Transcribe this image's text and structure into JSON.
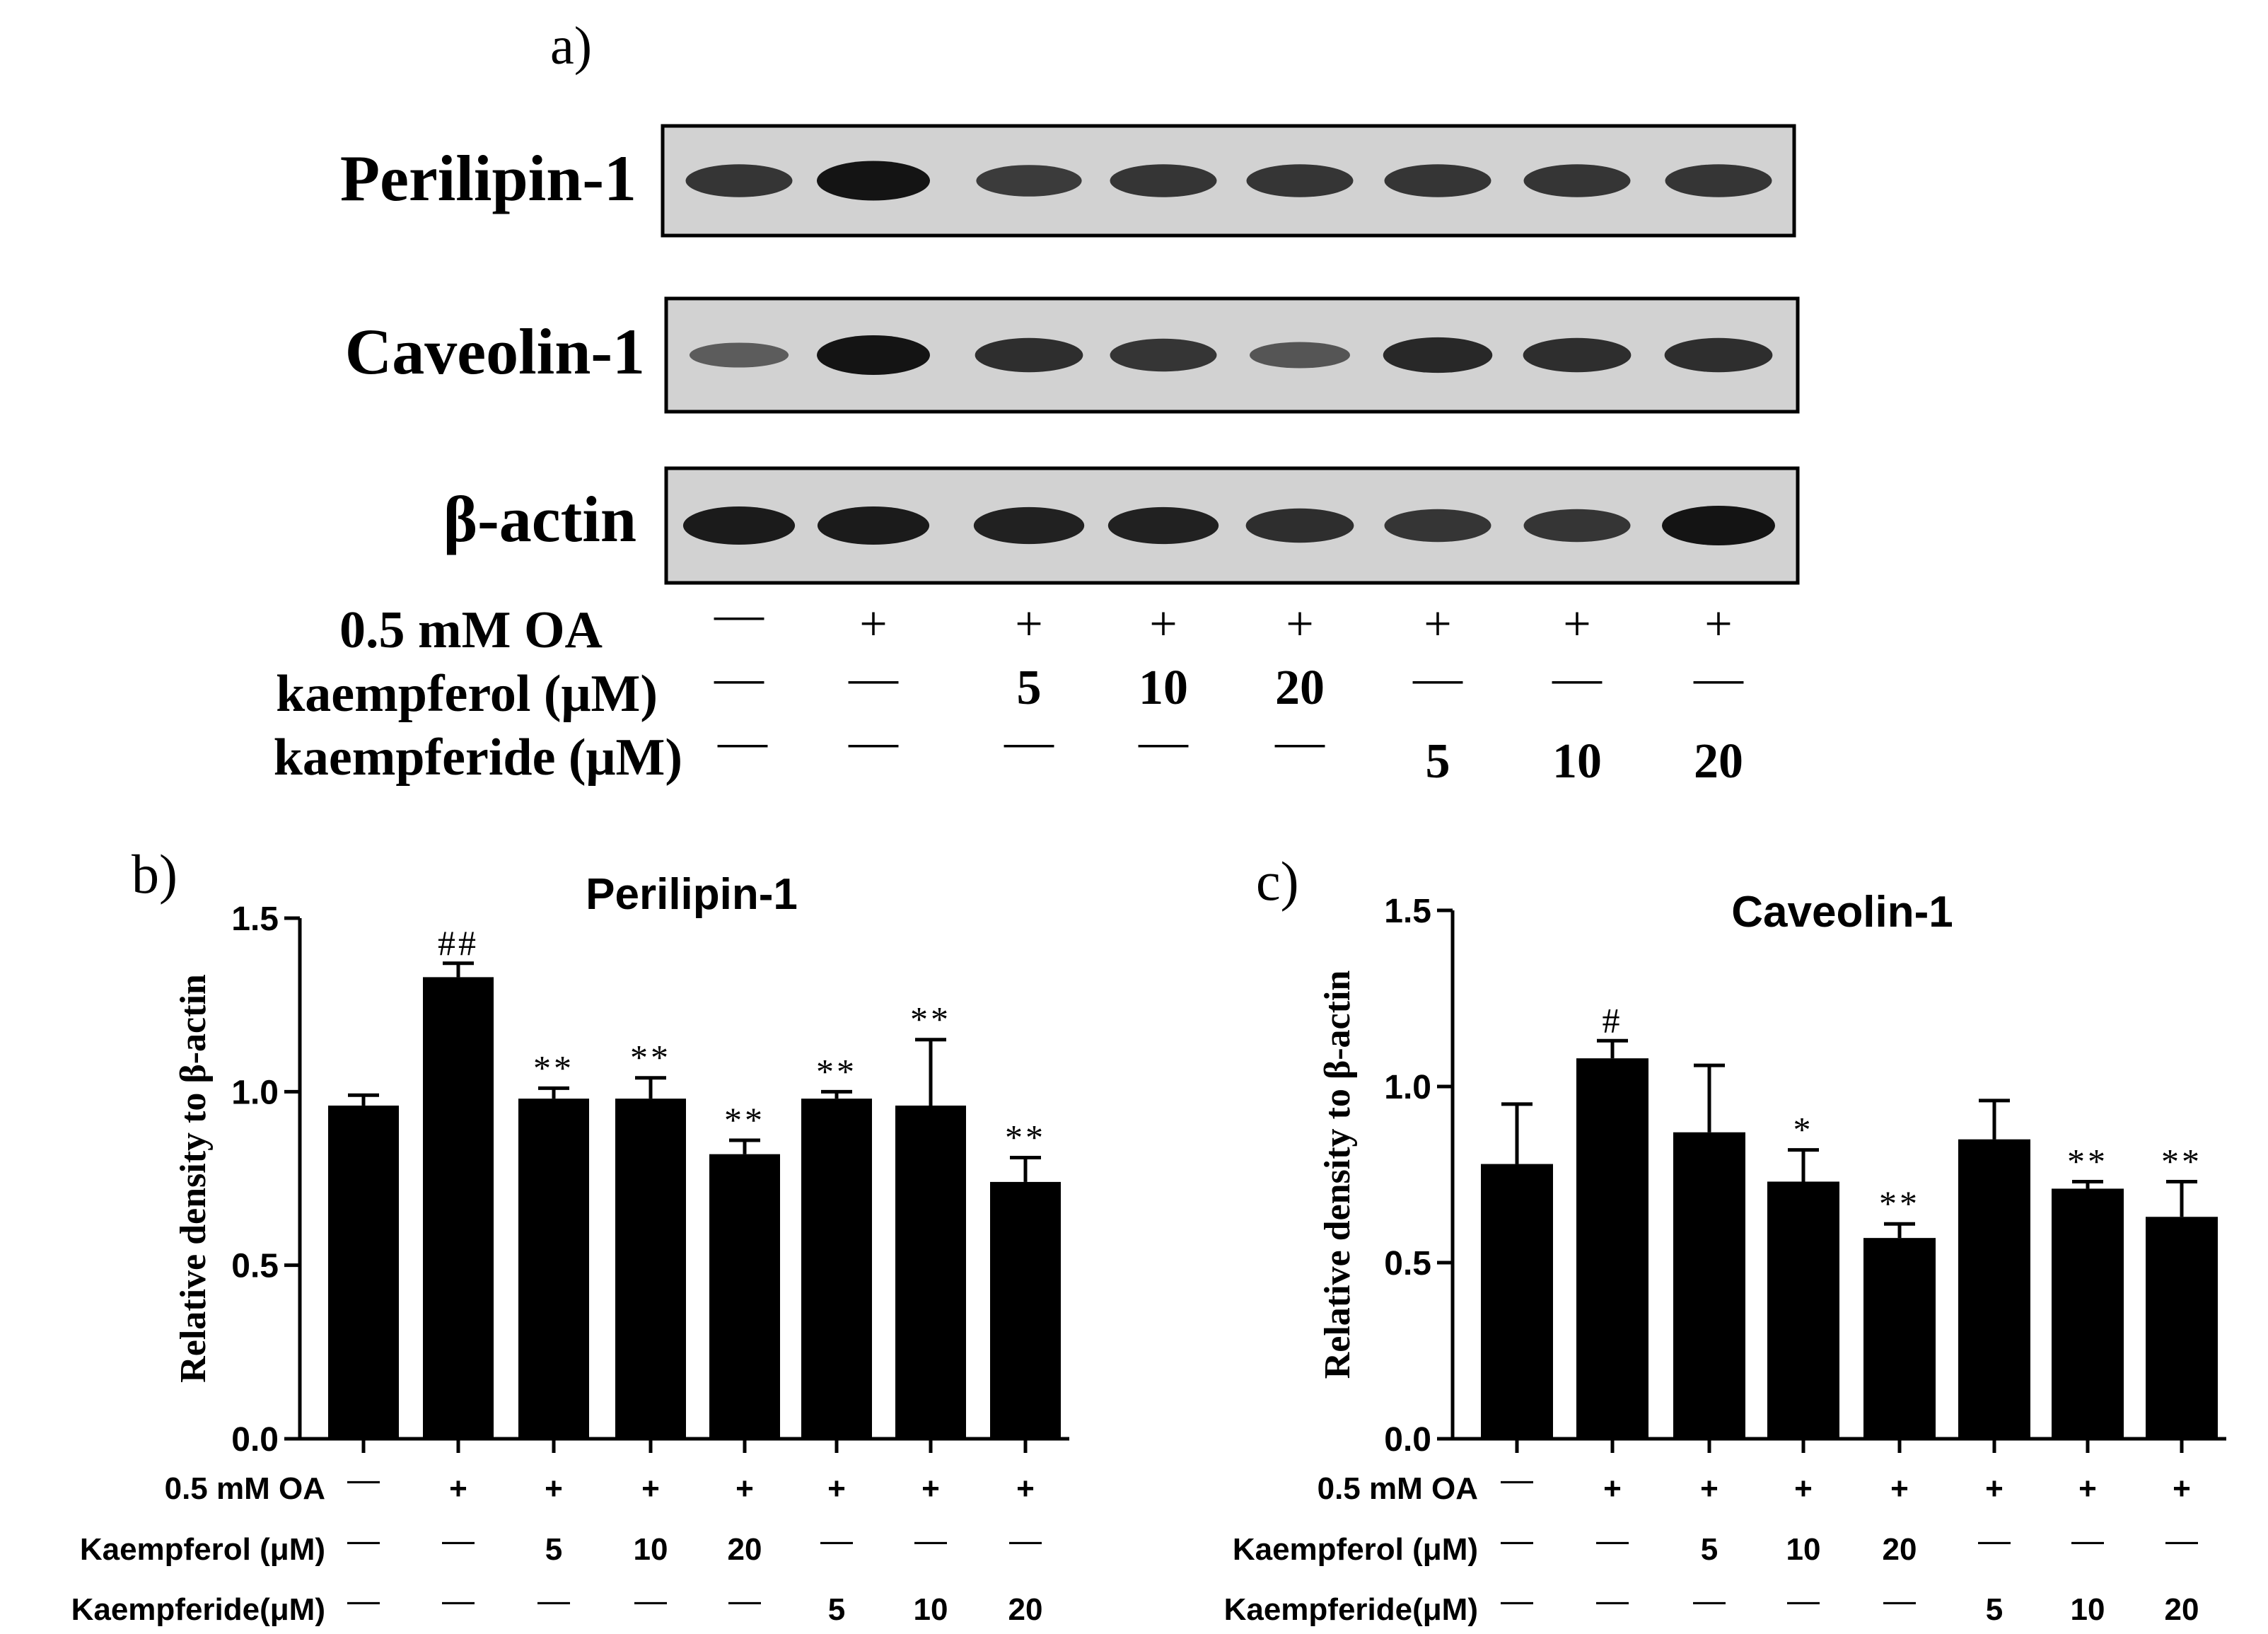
{
  "panel_a": {
    "label": "a)",
    "lanes": 8,
    "blots": [
      {
        "name": "Perilipin-1",
        "band_intensity": [
          0.75,
          1.0,
          0.7,
          0.75,
          0.75,
          0.75,
          0.75,
          0.75
        ]
      },
      {
        "name": "Caveolin-1",
        "band_intensity": [
          0.45,
          1.0,
          0.8,
          0.75,
          0.5,
          0.85,
          0.8,
          0.8
        ]
      },
      {
        "name": "β-actin",
        "band_intensity": [
          0.95,
          0.95,
          0.9,
          0.9,
          0.8,
          0.75,
          0.75,
          1.0
        ]
      }
    ],
    "treatments": [
      {
        "label": "0.5 mM OA",
        "values": [
          "—",
          "+",
          "+",
          "+",
          "+",
          "+",
          "+",
          "+"
        ]
      },
      {
        "label": "kaempferol (μM)",
        "values": [
          "—",
          "—",
          "5",
          "10",
          "20",
          "—",
          "—",
          "—"
        ]
      },
      {
        "label": "kaempferide (μM)",
        "values": [
          "—",
          "—",
          "—",
          "—",
          "—",
          "5",
          "10",
          "20"
        ]
      }
    ]
  },
  "panel_b": {
    "label": "b)"
  },
  "panel_c": {
    "label": "c)"
  },
  "chart_data": [
    {
      "type": "bar",
      "title": "Perilipin-1",
      "ylabel": "Relative density to β-actin",
      "xlabel": "",
      "ylim": [
        0,
        1.5
      ],
      "yticks": [
        "0.0",
        "0.5",
        "1.0",
        "1.5"
      ],
      "values": [
        0.96,
        1.33,
        0.98,
        0.98,
        0.82,
        0.98,
        0.96,
        0.74
      ],
      "errors": [
        0.03,
        0.04,
        0.03,
        0.06,
        0.04,
        0.02,
        0.19,
        0.07
      ],
      "annotations": [
        "",
        "##",
        "**",
        "**",
        "**",
        "**",
        "**",
        "**"
      ],
      "treatments": [
        {
          "label": "0.5 mM OA",
          "values": [
            "—",
            "+",
            "+",
            "+",
            "+",
            "+",
            "+",
            "+"
          ]
        },
        {
          "label": "Kaempferol (μM)",
          "values": [
            "—",
            "—",
            "5",
            "10",
            "20",
            "—",
            "—",
            "—"
          ]
        },
        {
          "label": "Kaempferide(μM)",
          "values": [
            "—",
            "—",
            "—",
            "—",
            "—",
            "5",
            "10",
            "20"
          ]
        }
      ]
    },
    {
      "type": "bar",
      "title": "Caveolin-1",
      "ylabel": "Relative density to β-actin",
      "xlabel": "",
      "ylim": [
        0,
        1.5
      ],
      "yticks": [
        "0.0",
        "0.5",
        "1.0",
        "1.5"
      ],
      "values": [
        0.78,
        1.08,
        0.87,
        0.73,
        0.57,
        0.85,
        0.71,
        0.63
      ],
      "errors": [
        0.17,
        0.05,
        0.19,
        0.09,
        0.04,
        0.11,
        0.02,
        0.1
      ],
      "annotations": [
        "",
        "#",
        "",
        "*",
        "**",
        "",
        "**",
        "**"
      ],
      "treatments": [
        {
          "label": "0.5 mM OA",
          "values": [
            "—",
            "+",
            "+",
            "+",
            "+",
            "+",
            "+",
            "+"
          ]
        },
        {
          "label": "Kaempferol (μM)",
          "values": [
            "—",
            "—",
            "5",
            "10",
            "20",
            "—",
            "—",
            "—"
          ]
        },
        {
          "label": "Kaempferide(μM)",
          "values": [
            "—",
            "—",
            "—",
            "—",
            "—",
            "5",
            "10",
            "20"
          ]
        }
      ]
    }
  ]
}
